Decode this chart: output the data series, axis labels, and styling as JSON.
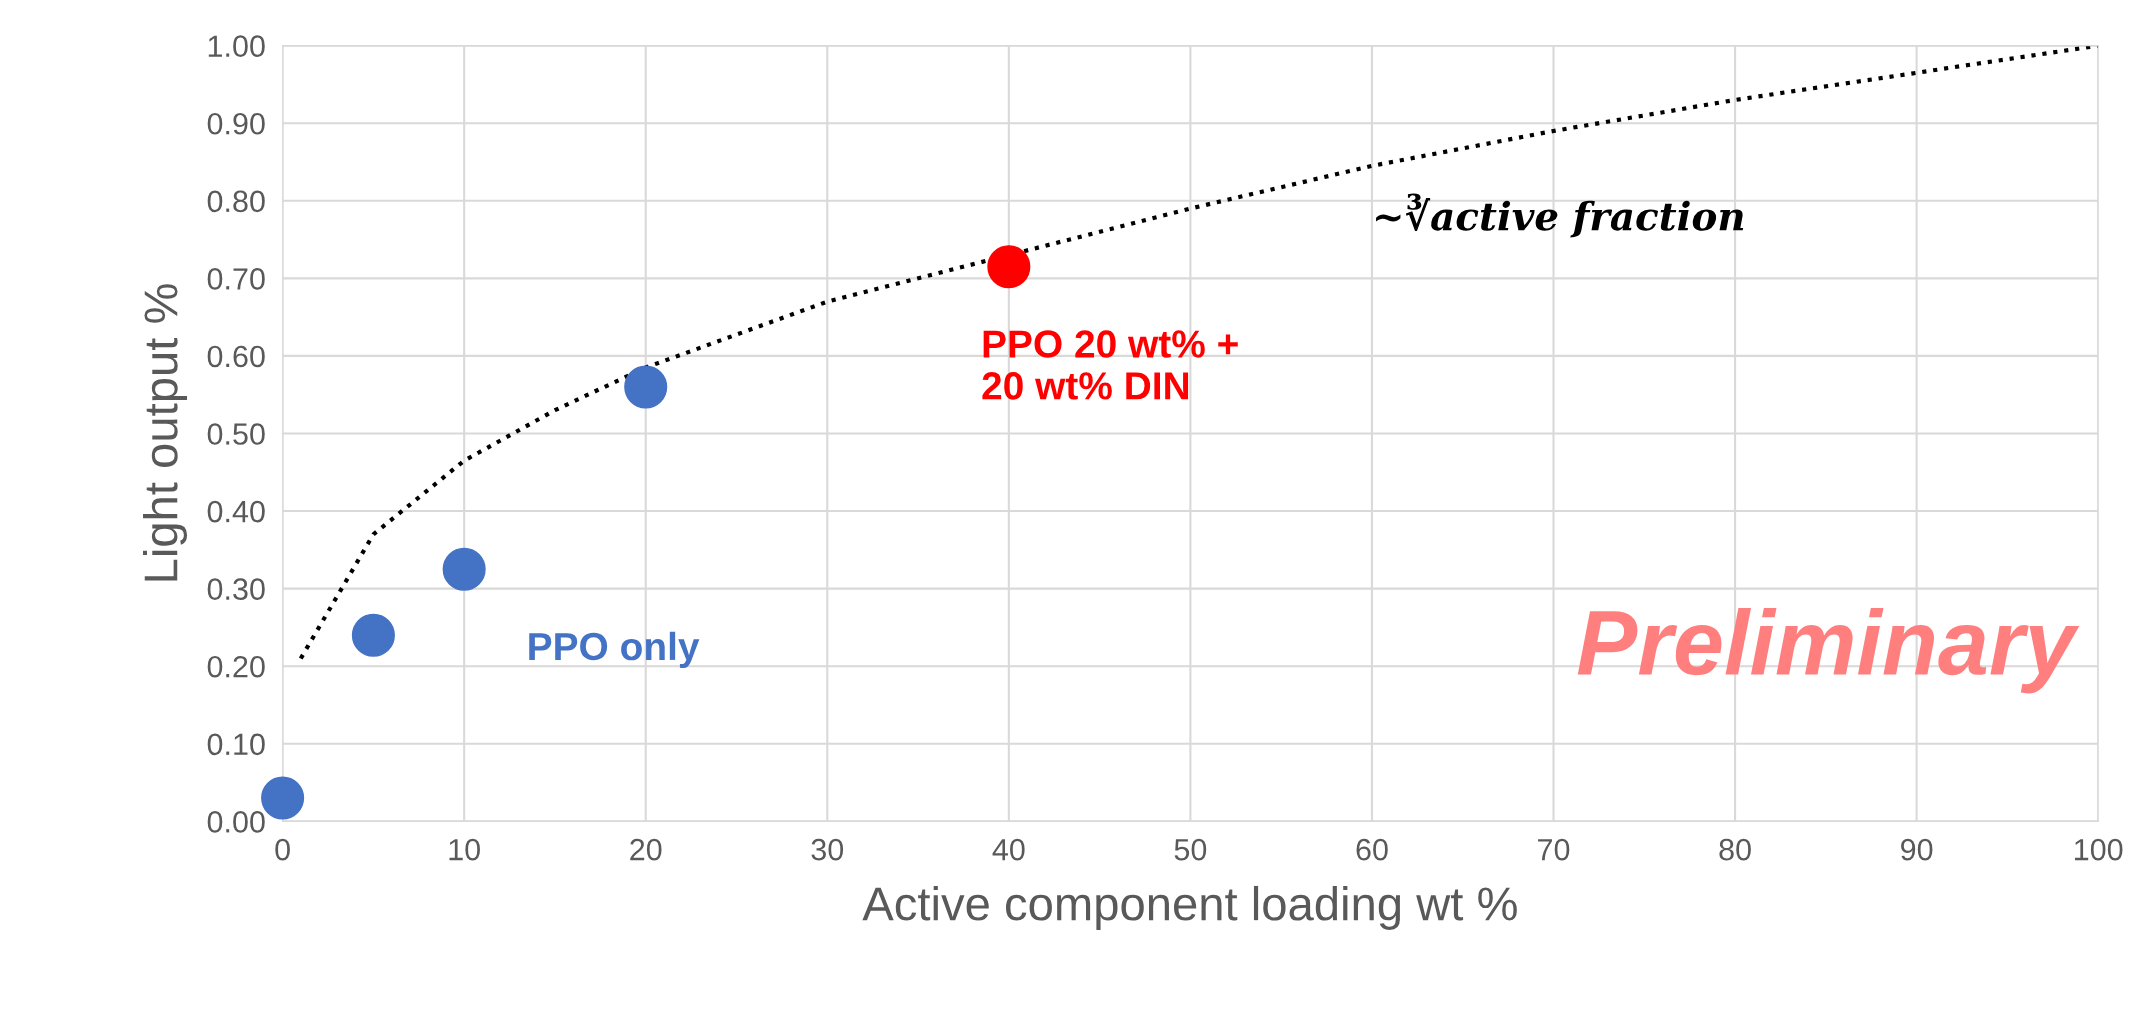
{
  "chart_data": {
    "type": "scatter",
    "xlabel": "Active component loading wt %",
    "ylabel": "Light output %",
    "xlim": [
      0,
      100
    ],
    "ylim": [
      0,
      1
    ],
    "xticks": [
      0,
      10,
      20,
      30,
      40,
      50,
      60,
      70,
      80,
      90,
      100
    ],
    "yticks": [
      {
        "value": 0,
        "label": "0.00"
      },
      {
        "value": 0.1,
        "label": "0.10"
      },
      {
        "value": 0.2,
        "label": "0.20"
      },
      {
        "value": 0.3,
        "label": "0.30"
      },
      {
        "value": 0.4,
        "label": "0.40"
      },
      {
        "value": 0.5,
        "label": "0.50"
      },
      {
        "value": 0.6,
        "label": "0.60"
      },
      {
        "value": 0.7,
        "label": "0.70"
      },
      {
        "value": 0.8,
        "label": "0.80"
      },
      {
        "value": 0.9,
        "label": "0.90"
      },
      {
        "value": 1.0,
        "label": "1.00"
      }
    ],
    "grid": true,
    "marker": "circle",
    "series": [
      {
        "name": "PPO only",
        "color": "#4472c4",
        "x": [
          0,
          5,
          10,
          20
        ],
        "values": [
          0.03,
          0.24,
          0.325,
          0.56
        ]
      },
      {
        "name": "PPO 20 wt% +\n20 wt% DIN",
        "color": "#ff0000",
        "x": [
          40
        ],
        "values": [
          0.715
        ]
      },
      {
        "type": "line",
        "marker": "none",
        "line_style": "dotted",
        "color": "#000000",
        "x": [
          1,
          5,
          10,
          15,
          20,
          30,
          50,
          60,
          70,
          80,
          90,
          100
        ],
        "values": [
          0.21,
          0.37,
          0.465,
          0.53,
          0.585,
          0.67,
          0.79,
          0.845,
          0.89,
          0.93,
          0.965,
          1.0
        ]
      }
    ],
    "annotations": [
      "~∛active fraction",
      "Preliminary"
    ]
  }
}
